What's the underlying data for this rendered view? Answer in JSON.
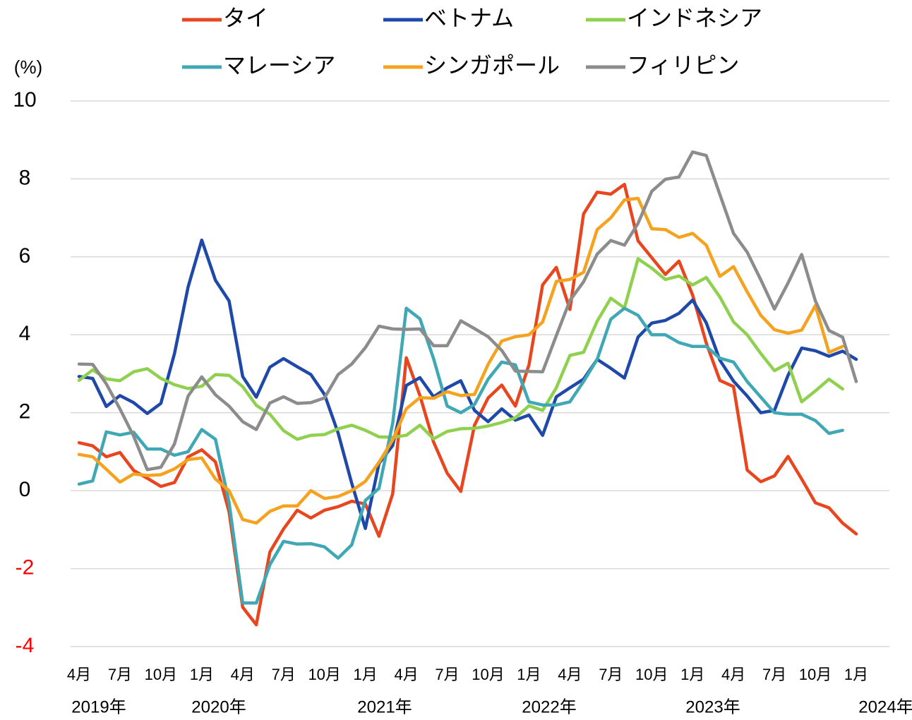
{
  "chart_data": {
    "type": "line",
    "y_label": "(%)",
    "categories": [
      "4月",
      null,
      null,
      "7月",
      null,
      null,
      "10月",
      null,
      null,
      "1月",
      null,
      null,
      "4月",
      null,
      null,
      "7月",
      null,
      null,
      "10月",
      null,
      null,
      "1月",
      null,
      null,
      "4月",
      null,
      null,
      "7月",
      null,
      null,
      "10月",
      null,
      null,
      "1月",
      null,
      null,
      "4月",
      null,
      null,
      "7月",
      null,
      null,
      "10月",
      null,
      null,
      "1月",
      null,
      null,
      "4月",
      null,
      null,
      "7月",
      null,
      null,
      "10月",
      null,
      null,
      "1月"
    ],
    "x_group_labels": [
      "2019年",
      "2020年",
      "2021年",
      "2022年",
      "2023年",
      "2024年"
    ],
    "ylim": [
      -4,
      10
    ],
    "yticks": [
      -4,
      -2,
      0,
      2,
      4,
      6,
      8,
      10
    ],
    "grid": true,
    "negative_tick_color": "#ff0000",
    "series": [
      {
        "name": "タイ",
        "color": "#e8461e",
        "values": [
          1.23,
          1.15,
          0.87,
          0.98,
          0.52,
          0.32,
          0.11,
          0.21,
          0.87,
          1.05,
          0.74,
          -0.54,
          -2.99,
          -3.44,
          -1.57,
          -0.98,
          -0.5,
          -0.7,
          -0.5,
          -0.41,
          -0.27,
          -0.34,
          -1.17,
          -0.08,
          3.41,
          2.44,
          1.25,
          0.45,
          -0.02,
          1.68,
          2.38,
          2.71,
          2.17,
          3.23,
          5.28,
          5.73,
          4.65,
          7.1,
          7.66,
          7.61,
          7.86,
          6.41,
          5.98,
          5.55,
          5.89,
          5.02,
          3.79,
          2.83,
          2.67,
          0.53,
          0.23,
          0.38,
          0.88,
          0.3,
          -0.31,
          -0.44,
          -0.83,
          -1.11
        ]
      },
      {
        "name": "ベトナム",
        "color": "#1f49a8",
        "values": [
          2.93,
          2.88,
          2.16,
          2.44,
          2.26,
          1.98,
          2.24,
          3.52,
          5.23,
          6.43,
          5.4,
          4.87,
          2.93,
          2.4,
          3.17,
          3.39,
          3.18,
          2.98,
          2.47,
          1.48,
          0.19,
          -0.97,
          0.7,
          1.16,
          2.7,
          2.9,
          2.41,
          2.64,
          2.82,
          2.06,
          1.77,
          2.1,
          1.81,
          1.94,
          1.42,
          2.41,
          2.64,
          2.86,
          3.37,
          3.14,
          2.89,
          3.94,
          4.3,
          4.37,
          4.55,
          4.89,
          4.31,
          3.35,
          2.81,
          2.43,
          2.0,
          2.06,
          2.96,
          3.66,
          3.59,
          3.45,
          3.58,
          3.37
        ]
      },
      {
        "name": "インドネシア",
        "color": "#8fd14f",
        "values": [
          2.83,
          3.1,
          2.87,
          2.82,
          3.05,
          3.13,
          2.88,
          2.72,
          2.62,
          2.68,
          2.98,
          2.96,
          2.67,
          2.19,
          1.96,
          1.54,
          1.32,
          1.42,
          1.44,
          1.59,
          1.68,
          1.55,
          1.38,
          1.37,
          1.42,
          1.68,
          1.33,
          1.52,
          1.59,
          1.6,
          1.66,
          1.75,
          1.87,
          2.18,
          2.06,
          2.64,
          3.47,
          3.55,
          4.35,
          4.94,
          4.69,
          5.95,
          5.71,
          5.42,
          5.51,
          5.28,
          5.47,
          4.97,
          4.33,
          4.0,
          3.52,
          3.08,
          3.27,
          2.28,
          2.56,
          2.86,
          2.61,
          null
        ]
      },
      {
        "name": "マレーシア",
        "color": "#3fa8b4",
        "values": [
          0.17,
          0.25,
          1.51,
          1.43,
          1.5,
          1.07,
          1.07,
          0.91,
          1.0,
          1.57,
          1.32,
          -0.3,
          -2.88,
          -2.88,
          -1.9,
          -1.3,
          -1.37,
          -1.36,
          -1.44,
          -1.73,
          -1.39,
          -0.25,
          0.06,
          1.73,
          4.68,
          4.41,
          3.39,
          2.17,
          2.0,
          2.21,
          2.86,
          3.3,
          3.23,
          2.28,
          2.2,
          2.2,
          2.28,
          2.8,
          3.37,
          4.4,
          4.68,
          4.5,
          4.0,
          4.0,
          3.8,
          3.7,
          3.7,
          3.4,
          3.3,
          2.8,
          2.4,
          2.0,
          1.96,
          1.96,
          1.8,
          1.47,
          1.55,
          null
        ]
      },
      {
        "name": "シンガポール",
        "color": "#f5a21f",
        "values": [
          0.93,
          0.87,
          0.55,
          0.22,
          0.43,
          0.39,
          0.41,
          0.56,
          0.8,
          0.84,
          0.3,
          0.0,
          -0.74,
          -0.83,
          -0.53,
          -0.39,
          -0.39,
          0.0,
          -0.2,
          -0.15,
          0.0,
          0.24,
          0.73,
          1.3,
          2.1,
          2.39,
          2.37,
          2.54,
          2.44,
          2.47,
          3.24,
          3.84,
          3.95,
          4.0,
          4.33,
          5.37,
          5.42,
          5.6,
          6.7,
          7.0,
          7.46,
          7.5,
          6.72,
          6.7,
          6.5,
          6.6,
          6.3,
          5.5,
          5.75,
          5.1,
          4.5,
          4.13,
          4.04,
          4.12,
          4.75,
          3.55,
          3.7,
          null
        ]
      },
      {
        "name": "フィリピン",
        "color": "#8c8c8c",
        "values": [
          3.25,
          3.24,
          2.74,
          2.1,
          1.4,
          0.54,
          0.6,
          1.2,
          2.43,
          2.92,
          2.46,
          2.17,
          1.77,
          1.57,
          2.25,
          2.41,
          2.24,
          2.26,
          2.38,
          2.98,
          3.25,
          3.67,
          4.22,
          4.15,
          4.14,
          4.15,
          3.72,
          3.72,
          4.36,
          4.16,
          3.95,
          3.6,
          3.07,
          3.06,
          3.05,
          3.98,
          4.88,
          5.36,
          6.07,
          6.42,
          6.3,
          6.86,
          7.68,
          7.99,
          8.05,
          8.69,
          8.6,
          7.6,
          6.6,
          6.12,
          5.41,
          4.66,
          5.33,
          6.06,
          4.87,
          4.11,
          3.94,
          2.8
        ]
      }
    ]
  }
}
